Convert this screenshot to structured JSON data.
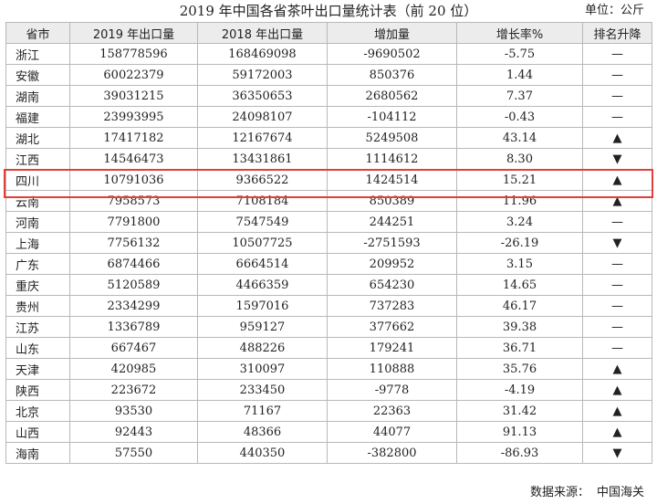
{
  "title": "2019 年中国各省茶叶出口量统计表（前 20 位）",
  "unit": "单位：公斤",
  "source": {
    "label": "数据来源：",
    "value": "中国海关"
  },
  "highlight_color": "#e0403a",
  "table": {
    "headers": [
      "省市",
      "2019 年出口量",
      "2018 年出口量",
      "增加量",
      "增长率%",
      "排名升降"
    ],
    "rows": [
      {
        "province": "浙江",
        "y2019": "158778596",
        "y2018": "168469098",
        "change": "-9690502",
        "rate": "-5.75",
        "rank": "—"
      },
      {
        "province": "安徽",
        "y2019": "60022379",
        "y2018": "59172003",
        "change": "850376",
        "rate": "1.44",
        "rank": "—"
      },
      {
        "province": "湖南",
        "y2019": "39031215",
        "y2018": "36350653",
        "change": "2680562",
        "rate": "7.37",
        "rank": "—"
      },
      {
        "province": "福建",
        "y2019": "23993995",
        "y2018": "24098107",
        "change": "-104112",
        "rate": "-0.43",
        "rank": "—"
      },
      {
        "province": "湖北",
        "y2019": "17417182",
        "y2018": "12167674",
        "change": "5249508",
        "rate": "43.14",
        "rank": "▲"
      },
      {
        "province": "江西",
        "y2019": "14546473",
        "y2018": "13431861",
        "change": "1114612",
        "rate": "8.30",
        "rank": "▼"
      },
      {
        "province": "四川",
        "y2019": "10791036",
        "y2018": "9366522",
        "change": "1424514",
        "rate": "15.21",
        "rank": "▲"
      },
      {
        "province": "云南",
        "y2019": "7958573",
        "y2018": "7108184",
        "change": "850389",
        "rate": "11.96",
        "rank": "▲"
      },
      {
        "province": "河南",
        "y2019": "7791800",
        "y2018": "7547549",
        "change": "244251",
        "rate": "3.24",
        "rank": "—"
      },
      {
        "province": "上海",
        "y2019": "7756132",
        "y2018": "10507725",
        "change": "-2751593",
        "rate": "-26.19",
        "rank": "▼"
      },
      {
        "province": "广东",
        "y2019": "6874466",
        "y2018": "6664514",
        "change": "209952",
        "rate": "3.15",
        "rank": "—"
      },
      {
        "province": "重庆",
        "y2019": "5120589",
        "y2018": "4466359",
        "change": "654230",
        "rate": "14.65",
        "rank": "—"
      },
      {
        "province": "贵州",
        "y2019": "2334299",
        "y2018": "1597016",
        "change": "737283",
        "rate": "46.17",
        "rank": "—"
      },
      {
        "province": "江苏",
        "y2019": "1336789",
        "y2018": "959127",
        "change": "377662",
        "rate": "39.38",
        "rank": "—"
      },
      {
        "province": "山东",
        "y2019": "667467",
        "y2018": "488226",
        "change": "179241",
        "rate": "36.71",
        "rank": "—"
      },
      {
        "province": "天津",
        "y2019": "420985",
        "y2018": "310097",
        "change": "110888",
        "rate": "35.76",
        "rank": "▲"
      },
      {
        "province": "陕西",
        "y2019": "223672",
        "y2018": "233450",
        "change": "-9778",
        "rate": "-4.19",
        "rank": "▲"
      },
      {
        "province": "北京",
        "y2019": "93530",
        "y2018": "71167",
        "change": "22363",
        "rate": "31.42",
        "rank": "▲"
      },
      {
        "province": "山西",
        "y2019": "92443",
        "y2018": "48366",
        "change": "44077",
        "rate": "91.13",
        "rank": "▲"
      },
      {
        "province": "海南",
        "y2019": "57550",
        "y2018": "440350",
        "change": "-382800",
        "rate": "-86.93",
        "rank": "▼"
      }
    ]
  }
}
